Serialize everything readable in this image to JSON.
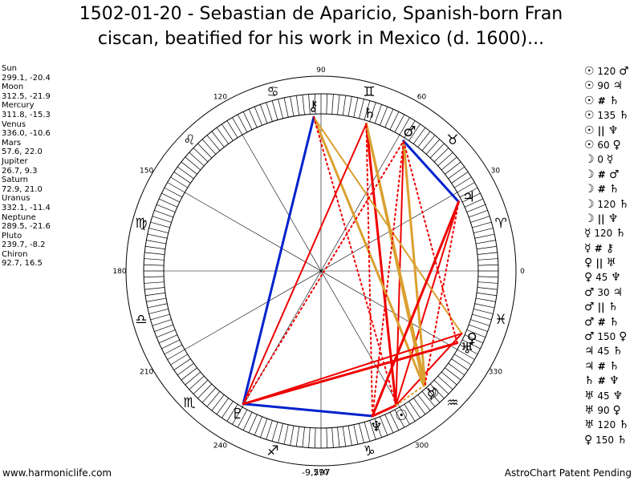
{
  "title": "1502-01-20 - Sebastian de Aparicio, Spanish-born Fran\nciscan, beatified for his work in Mexico (d. 1600)...",
  "planets": [
    {
      "name": "Sun",
      "coords": "299.1, -20.4",
      "lon": 299.1,
      "glyph": "☉"
    },
    {
      "name": "Moon",
      "coords": "312.5, -21.9",
      "lon": 312.5,
      "glyph": "☽"
    },
    {
      "name": "Mercury",
      "coords": "311.8, -15.3",
      "lon": 311.8,
      "glyph": "☿"
    },
    {
      "name": "Venus",
      "coords": "336.0, -10.6",
      "lon": 336.0,
      "glyph": "♀"
    },
    {
      "name": "Mars",
      "coords": "57.6, 22.0",
      "lon": 57.6,
      "glyph": "♂"
    },
    {
      "name": "Jupiter",
      "coords": "26.7, 9.3",
      "lon": 26.7,
      "glyph": "♃"
    },
    {
      "name": "Saturn",
      "coords": "72.9, 21.0",
      "lon": 72.9,
      "glyph": "♄"
    },
    {
      "name": "Uranus",
      "coords": "332.1, -11.4",
      "lon": 332.1,
      "glyph": "♅"
    },
    {
      "name": "Neptune",
      "coords": "289.5, -21.6",
      "lon": 289.5,
      "glyph": "♆"
    },
    {
      "name": "Pluto",
      "coords": "239.7, -8.2",
      "lon": 239.7,
      "glyph": "♇"
    },
    {
      "name": "Chiron",
      "coords": "92.7, 16.5",
      "lon": 92.7,
      "glyph": "⚷"
    }
  ],
  "aspects": [
    {
      "p1": "☉",
      "asp": "120",
      "p2": "♂",
      "bold": false
    },
    {
      "p1": "☉",
      "asp": "90",
      "p2": "♃",
      "bold": false
    },
    {
      "p1": "☉",
      "asp": "#",
      "p2": "♄",
      "bold": true
    },
    {
      "p1": "☉",
      "asp": "135",
      "p2": "♄",
      "bold": false
    },
    {
      "p1": "☉",
      "asp": "||",
      "p2": "♆",
      "bold": true
    },
    {
      "p1": "☉",
      "asp": "60",
      "p2": "♀",
      "bold": false
    },
    {
      "p1": "☽",
      "asp": "0",
      "p2": "☿",
      "bold": false
    },
    {
      "p1": "☽",
      "asp": "#",
      "p2": "♂",
      "bold": true
    },
    {
      "p1": "☽",
      "asp": "#",
      "p2": "♄",
      "bold": true
    },
    {
      "p1": "☽",
      "asp": "120",
      "p2": "♄",
      "bold": false
    },
    {
      "p1": "☽",
      "asp": "||",
      "p2": "♆",
      "bold": true
    },
    {
      "p1": "☿",
      "asp": "120",
      "p2": "♄",
      "bold": false
    },
    {
      "p1": "☿",
      "asp": "#",
      "p2": "⚷",
      "bold": true
    },
    {
      "p1": "♀",
      "asp": "||",
      "p2": "♅",
      "bold": true
    },
    {
      "p1": "♀",
      "asp": "45",
      "p2": "♆",
      "bold": false
    },
    {
      "p1": "♂",
      "asp": "30",
      "p2": "♃",
      "bold": false
    },
    {
      "p1": "♂",
      "asp": "||",
      "p2": "♄",
      "bold": true
    },
    {
      "p1": "♂",
      "asp": "#",
      "p2": "♄",
      "bold": true
    },
    {
      "p1": "♂",
      "asp": "150",
      "p2": "♀",
      "bold": false
    },
    {
      "p1": "♃",
      "asp": "45",
      "p2": "♄",
      "bold": false
    },
    {
      "p1": "♃",
      "asp": "#",
      "p2": "♄",
      "bold": true
    },
    {
      "p1": "♄",
      "asp": "#",
      "p2": "♆",
      "bold": true
    },
    {
      "p1": "♅",
      "asp": "45",
      "p2": "♆",
      "bold": false
    },
    {
      "p1": "♅",
      "asp": "90",
      "p2": "♀",
      "bold": false
    },
    {
      "p1": "♅",
      "asp": "120",
      "p2": "♄",
      "bold": false
    },
    {
      "p1": "♀",
      "asp": "150",
      "p2": "♄",
      "bold": false
    }
  ],
  "degree_labels": [
    {
      "text": "0",
      "deg": 0
    },
    {
      "text": "30",
      "deg": 30
    },
    {
      "text": "60",
      "deg": 60
    },
    {
      "text": "90",
      "deg": 90
    },
    {
      "text": "120",
      "deg": 120
    },
    {
      "text": "150",
      "deg": 150
    },
    {
      "text": "180",
      "deg": 180
    },
    {
      "text": "210",
      "deg": 210
    },
    {
      "text": "240",
      "deg": 240
    },
    {
      "text": "270",
      "deg": 270
    },
    {
      "text": "300",
      "deg": 300
    },
    {
      "text": "330",
      "deg": 330
    }
  ],
  "signs": [
    {
      "glyph": "♈",
      "lon": 15
    },
    {
      "glyph": "♉",
      "lon": 45
    },
    {
      "glyph": "♊",
      "lon": 75
    },
    {
      "glyph": "♋",
      "lon": 105
    },
    {
      "glyph": "♌",
      "lon": 135
    },
    {
      "glyph": "♍",
      "lon": 165
    },
    {
      "glyph": "♎",
      "lon": 195
    },
    {
      "glyph": "♏",
      "lon": 225
    },
    {
      "glyph": "♐",
      "lon": 255
    },
    {
      "glyph": "♑",
      "lon": 285
    },
    {
      "glyph": "♒",
      "lon": 315
    },
    {
      "glyph": "♓",
      "lon": 345
    }
  ],
  "aspect_lines": [
    {
      "a": "Sun",
      "b": "Mars",
      "color": "#ee0000",
      "style": "solid",
      "width": 2
    },
    {
      "a": "Sun",
      "b": "Jupiter",
      "color": "#ee0000",
      "style": "solid",
      "width": 2
    },
    {
      "a": "Sun",
      "b": "Saturn",
      "color": "#ee0000",
      "style": "solid",
      "width": 3
    },
    {
      "a": "Sun",
      "b": "Neptune",
      "color": "#ee0000",
      "style": "solid",
      "width": 3
    },
    {
      "a": "Sun",
      "b": "Venus",
      "color": "#ee0000",
      "style": "solid",
      "width": 2
    },
    {
      "a": "Moon",
      "b": "Saturn",
      "color": "#daa030",
      "style": "solid",
      "width": 3
    },
    {
      "a": "Moon",
      "b": "Mars",
      "color": "#daa030",
      "style": "solid",
      "width": 3
    },
    {
      "a": "Mercury",
      "b": "Saturn",
      "color": "#daa030",
      "style": "solid",
      "width": 3
    },
    {
      "a": "Mercury",
      "b": "Chiron",
      "color": "#daa030",
      "style": "solid",
      "width": 3
    },
    {
      "a": "Venus",
      "b": "Chiron",
      "color": "#daa030",
      "style": "solid",
      "width": 2
    },
    {
      "a": "Mars",
      "b": "Jupiter",
      "color": "#0022cc",
      "style": "solid",
      "width": 3
    },
    {
      "a": "Pluto",
      "b": "Chiron",
      "color": "#0022cc",
      "style": "solid",
      "width": 3
    },
    {
      "a": "Pluto",
      "b": "Neptune",
      "color": "#0022cc",
      "style": "solid",
      "width": 3
    },
    {
      "a": "Pluto",
      "b": "Saturn",
      "color": "#ee0000",
      "style": "solid",
      "width": 2
    },
    {
      "a": "Pluto",
      "b": "Venus",
      "color": "#ee0000",
      "style": "solid",
      "width": 2
    },
    {
      "a": "Pluto",
      "b": "Uranus",
      "color": "#ee0000",
      "style": "solid",
      "width": 3
    },
    {
      "a": "Neptune",
      "b": "Jupiter",
      "color": "#ee0000",
      "style": "solid",
      "width": 3
    },
    {
      "a": "Sun",
      "b": "Chiron",
      "color": "#ee0000",
      "style": "dotted",
      "width": 2
    },
    {
      "a": "Neptune",
      "b": "Saturn",
      "color": "#ee0000",
      "style": "dotted",
      "width": 2
    },
    {
      "a": "Neptune",
      "b": "Mars",
      "color": "#ee0000",
      "style": "dotted",
      "width": 2
    },
    {
      "a": "Moon",
      "b": "Jupiter",
      "color": "#ee0000",
      "style": "dotted",
      "width": 2
    },
    {
      "a": "Pluto",
      "b": "Mars",
      "color": "#ee0000",
      "style": "dotted",
      "width": 2
    },
    {
      "a": "Uranus",
      "b": "Mars",
      "color": "#ee0000",
      "style": "dotted",
      "width": 2
    },
    {
      "a": "Sun",
      "b": "Mercury",
      "color": "#daa030",
      "style": "dotted",
      "width": 2
    }
  ],
  "colors": {
    "red": "#ee0000",
    "gold": "#daa030",
    "blue": "#0022cc"
  },
  "footer_left": "www.harmoniclife.com",
  "footer_right": "AstroChart Patent Pending",
  "score": "-9,597"
}
